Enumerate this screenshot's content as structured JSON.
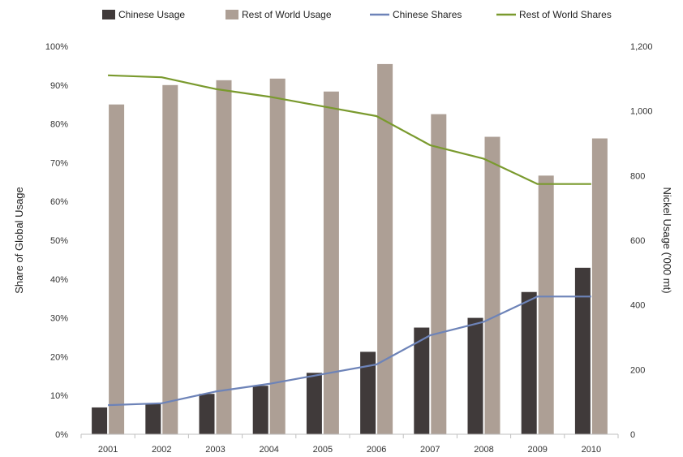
{
  "chart_data": {
    "type": "bar",
    "categories": [
      "2001",
      "2002",
      "2003",
      "2004",
      "2005",
      "2006",
      "2007",
      "2008",
      "2009",
      "2010"
    ],
    "bar_series": [
      {
        "name": "Chinese Usage",
        "color": "#403a3a",
        "values": [
          83,
          95,
          125,
          150,
          190,
          255,
          330,
          360,
          440,
          515
        ]
      },
      {
        "name": "Rest of World Usage",
        "color": "#ad9f95",
        "values": [
          1020,
          1080,
          1095,
          1100,
          1060,
          1145,
          990,
          920,
          800,
          915
        ]
      }
    ],
    "line_series": [
      {
        "name": "Chinese Shares",
        "color": "#6d83b8",
        "values": [
          7.5,
          8,
          11,
          13,
          15.5,
          18,
          25.5,
          29,
          35.5,
          35.5
        ]
      },
      {
        "name": "Rest of World Shares",
        "color": "#7a9a2e",
        "values": [
          92.5,
          92,
          89,
          87,
          84.5,
          82,
          74.5,
          71,
          64.5,
          64.5
        ]
      }
    ],
    "left_axis": {
      "label": "Share of Global Usage",
      "ylim": [
        0,
        100
      ],
      "ticks": [
        "0%",
        "10%",
        "20%",
        "30%",
        "40%",
        "50%",
        "60%",
        "70%",
        "80%",
        "90%",
        "100%"
      ]
    },
    "right_axis": {
      "label": "Nickel Usage ('000 mt)",
      "ylim": [
        0,
        1200
      ],
      "ticks": [
        "0",
        "200",
        "400",
        "600",
        "800",
        "1,000",
        "1,200"
      ]
    },
    "grid": false,
    "legend_position": "top"
  }
}
